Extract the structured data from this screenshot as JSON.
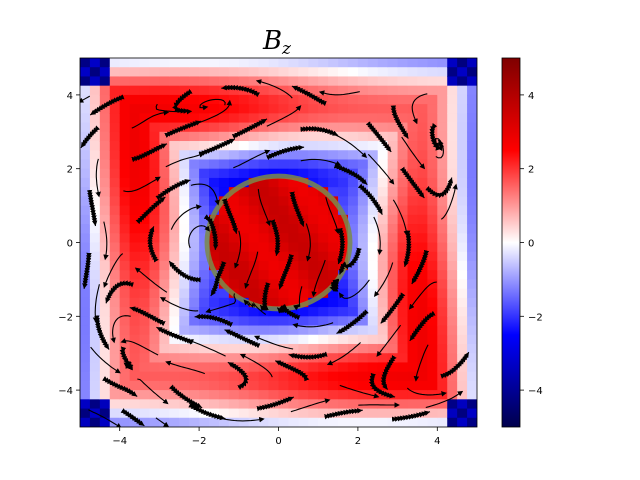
{
  "chart_data": {
    "type": "heatmap",
    "title": "B",
    "title_subscript": "z",
    "xlabel": "",
    "ylabel": "",
    "xlim": [
      -5,
      5
    ],
    "ylim": [
      -5,
      5
    ],
    "x_ticks": [
      -4,
      -2,
      0,
      2,
      4
    ],
    "y_ticks": [
      -4,
      -2,
      0,
      2,
      4
    ],
    "x_tick_labels": [
      "−4",
      "−2",
      "0",
      "2",
      "4"
    ],
    "y_tick_labels": [
      "−4",
      "−2",
      "0",
      "2",
      "4"
    ],
    "grid": false,
    "colormap": "seismic",
    "colormap_stops": [
      "#00004c",
      "#0000ff",
      "#ffffff",
      "#ff0000",
      "#7f0000"
    ],
    "colorbar": {
      "range": [
        -5,
        5
      ],
      "ticks": [
        -4,
        -2,
        0,
        2,
        4
      ],
      "tick_labels": [
        "−4",
        "−2",
        "0",
        "2",
        "4"
      ]
    },
    "grid_cells": 40,
    "disk": {
      "center": [
        0,
        0
      ],
      "radius": 1.8,
      "value": 3.2,
      "rim_color": "#7a8a4a"
    },
    "field_model": "Bz ≈ 2.2·cos(0.95·π·max(|x|,|y|)/2 + 0.9) outside the disk, with weak angular modulation; corners strongly negative (~ -4)",
    "overlay": "streamlines (black) with arrowheads"
  }
}
